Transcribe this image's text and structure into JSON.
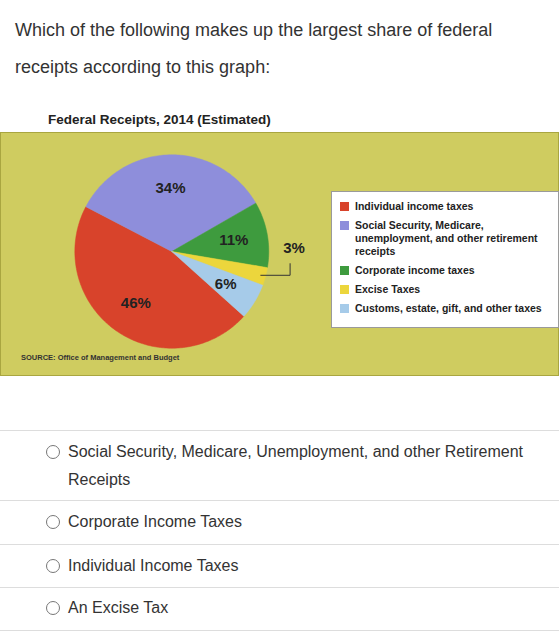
{
  "question": "Which of the following makes up the largest share of federal receipts according to this graph:",
  "chart_data": {
    "type": "pie",
    "title": "Federal Receipts, 2014 (Estimated)",
    "categories": [
      "Individual income taxes",
      "Social Security, Medicare, unemployment, and other retirement receipts",
      "Corporate income taxes",
      "Excise Taxes",
      "Customs, estate, gift, and other taxes"
    ],
    "values": [
      46,
      34,
      11,
      3,
      6
    ],
    "value_labels": [
      "46%",
      "34%",
      "11%",
      "3%",
      "6%"
    ],
    "colors": [
      "#d8432b",
      "#8e8edb",
      "#3e9b3e",
      "#ecd63c",
      "#a6cbe9"
    ],
    "data_labels": true,
    "legend": "right",
    "caption": "SOURCE: Office of Management and Budget"
  },
  "options": [
    "Social Security, Medicare, Unemployment, and other Retirement Receipts",
    "Corporate Income Taxes",
    "Individual Income Taxes",
    "An Excise Tax"
  ]
}
